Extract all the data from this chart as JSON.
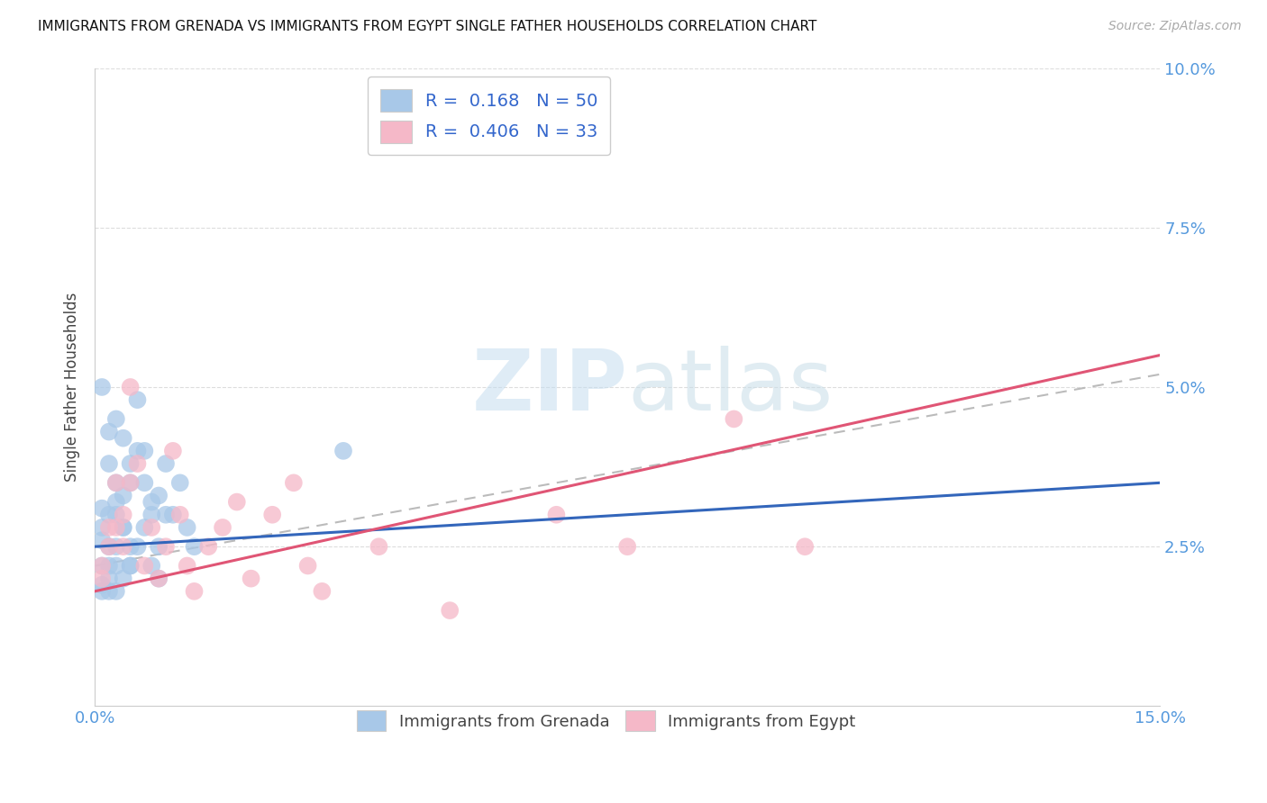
{
  "title": "IMMIGRANTS FROM GRENADA VS IMMIGRANTS FROM EGYPT SINGLE FATHER HOUSEHOLDS CORRELATION CHART",
  "source": "Source: ZipAtlas.com",
  "ylabel": "Single Father Households",
  "xlim": [
    0.0,
    0.15
  ],
  "ylim": [
    0.0,
    0.1
  ],
  "grenada_R": 0.168,
  "grenada_N": 50,
  "egypt_R": 0.406,
  "egypt_N": 33,
  "grenada_color": "#a8c8e8",
  "egypt_color": "#f5b8c8",
  "grenada_line_color": "#3366bb",
  "egypt_line_color": "#e05575",
  "trendline_color": "#bbbbbb",
  "background_color": "#ffffff",
  "watermark_zip": "ZIP",
  "watermark_atlas": "atlas",
  "legend_label_1": "Immigrants from Grenada",
  "legend_label_2": "Immigrants from Egypt",
  "grenada_x": [
    0.001,
    0.001,
    0.001,
    0.001,
    0.001,
    0.002,
    0.002,
    0.002,
    0.002,
    0.002,
    0.003,
    0.003,
    0.003,
    0.003,
    0.003,
    0.004,
    0.004,
    0.004,
    0.005,
    0.005,
    0.005,
    0.006,
    0.006,
    0.007,
    0.007,
    0.008,
    0.008,
    0.009,
    0.009,
    0.01,
    0.001,
    0.001,
    0.002,
    0.002,
    0.003,
    0.003,
    0.004,
    0.004,
    0.005,
    0.005,
    0.006,
    0.007,
    0.008,
    0.009,
    0.01,
    0.011,
    0.012,
    0.013,
    0.014,
    0.035
  ],
  "grenada_y": [
    0.026,
    0.022,
    0.028,
    0.031,
    0.019,
    0.025,
    0.03,
    0.02,
    0.018,
    0.022,
    0.035,
    0.03,
    0.025,
    0.022,
    0.018,
    0.033,
    0.028,
    0.02,
    0.038,
    0.025,
    0.022,
    0.04,
    0.025,
    0.035,
    0.028,
    0.03,
    0.022,
    0.033,
    0.02,
    0.03,
    0.05,
    0.018,
    0.043,
    0.038,
    0.045,
    0.032,
    0.042,
    0.028,
    0.035,
    0.022,
    0.048,
    0.04,
    0.032,
    0.025,
    0.038,
    0.03,
    0.035,
    0.028,
    0.025,
    0.04
  ],
  "egypt_x": [
    0.001,
    0.001,
    0.002,
    0.002,
    0.003,
    0.003,
    0.004,
    0.004,
    0.005,
    0.005,
    0.006,
    0.007,
    0.008,
    0.009,
    0.01,
    0.011,
    0.012,
    0.013,
    0.014,
    0.016,
    0.018,
    0.02,
    0.022,
    0.025,
    0.028,
    0.03,
    0.032,
    0.04,
    0.05,
    0.065,
    0.075,
    0.09,
    0.1
  ],
  "egypt_y": [
    0.022,
    0.02,
    0.028,
    0.025,
    0.035,
    0.028,
    0.03,
    0.025,
    0.05,
    0.035,
    0.038,
    0.022,
    0.028,
    0.02,
    0.025,
    0.04,
    0.03,
    0.022,
    0.018,
    0.025,
    0.028,
    0.032,
    0.02,
    0.03,
    0.035,
    0.022,
    0.018,
    0.025,
    0.015,
    0.03,
    0.025,
    0.045,
    0.025
  ]
}
